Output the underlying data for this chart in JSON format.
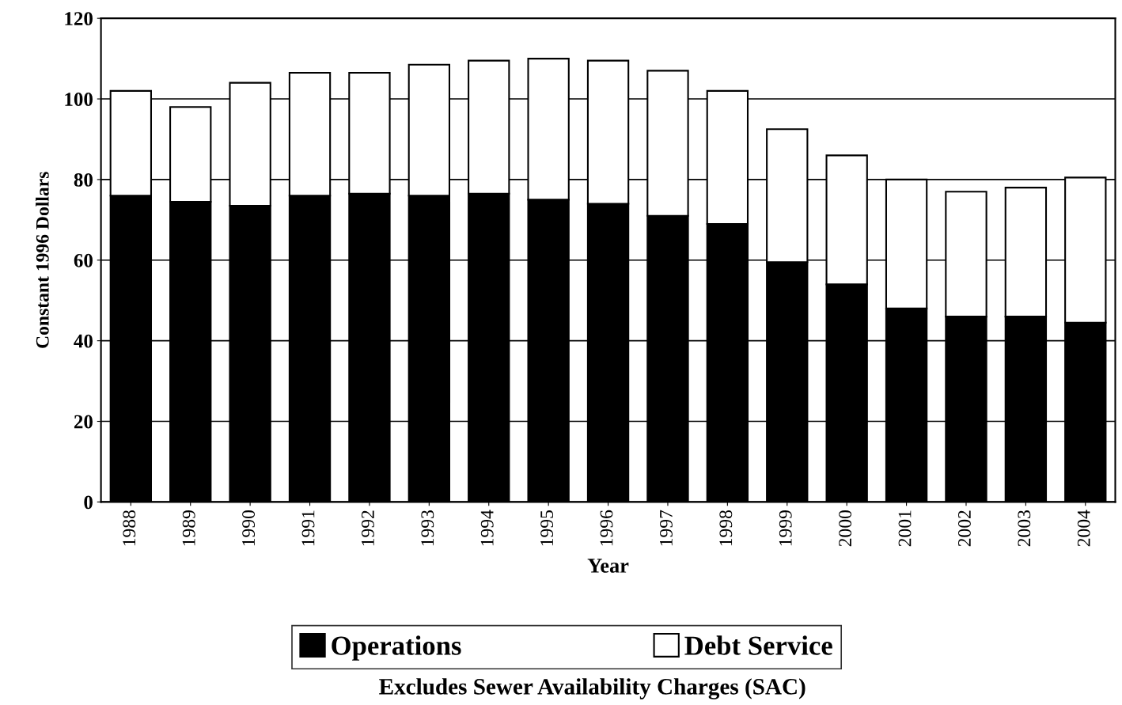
{
  "chart_data": {
    "type": "bar",
    "stacked": true,
    "xlabel": "Year",
    "ylabel": "Constant 1996 Dollars",
    "categories": [
      "1988",
      "1989",
      "1990",
      "1991",
      "1992",
      "1993",
      "1994",
      "1995",
      "1996",
      "1997",
      "1998",
      "1999",
      "2000",
      "2001",
      "2002",
      "2003",
      "2004"
    ],
    "series": [
      {
        "name": "Operations",
        "color": "#000000",
        "values": [
          76,
          74.5,
          73.5,
          76,
          76.5,
          76,
          76.5,
          75,
          74,
          71,
          69,
          59.5,
          54,
          48,
          46,
          46,
          44.5
        ]
      },
      {
        "name": "Debt Service",
        "color": "#ffffff",
        "values": [
          26,
          23.5,
          30.5,
          30.5,
          30,
          32.5,
          33,
          35,
          35.5,
          36,
          33,
          33,
          32,
          32,
          31,
          32,
          36
        ]
      }
    ],
    "ylim": [
      0,
      120
    ],
    "yticks": [
      0,
      20,
      40,
      60,
      80,
      100,
      120
    ],
    "grid": "y",
    "legend": "bottom",
    "annotations": [
      "Excludes Sewer Availability Charges (SAC)"
    ]
  }
}
